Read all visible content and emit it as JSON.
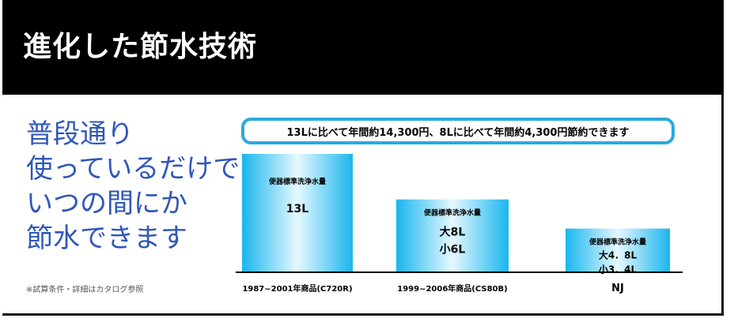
{
  "header": {
    "title": "進化した節水技術"
  },
  "tagline": {
    "lines": [
      "普段通り",
      "使っているだけで",
      "いつの間にか",
      "節水できます"
    ]
  },
  "note": "※試算条件・詳細はカタログ参照",
  "callout": {
    "text": "13Lに比べて年間約14,300円、8Lに比べて年間約4,300円節約できます"
  },
  "colors": {
    "accent": "#2aa9e0",
    "tagline": "#2f57b8",
    "header_bg": "#000000"
  },
  "chart_data": {
    "type": "bar",
    "categories": [
      "1987~2001年商品(C720R)",
      "1999~2006年商品(CS80B)",
      "NJ"
    ],
    "values": [
      13,
      8,
      4.8
    ],
    "value_caption": "便器標準洗浄水量",
    "value_labels": [
      [
        "13L"
      ],
      [
        "大8L",
        "小6L"
      ],
      [
        "大4．8L",
        "小3．4L"
      ]
    ],
    "ylim": [
      0,
      13
    ]
  }
}
